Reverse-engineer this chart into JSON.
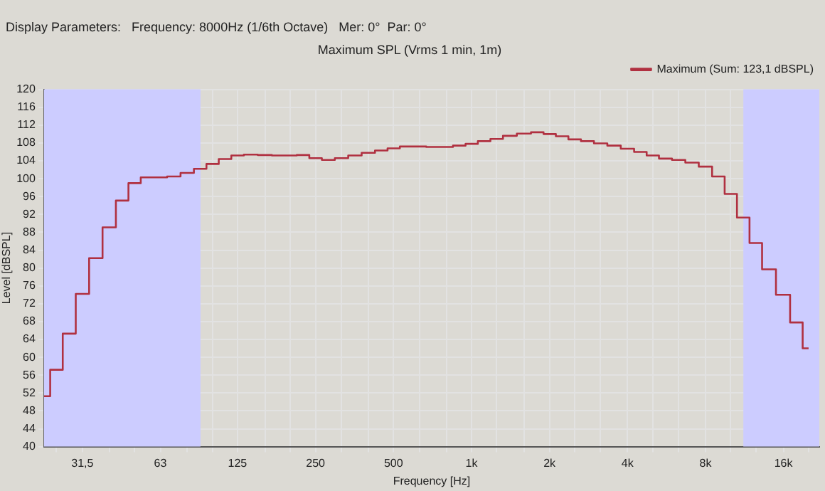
{
  "chart_data": {
    "type": "step",
    "title": "Maximum SPL (Vrms 1 min, 1m)",
    "xlabel": "Frequency [Hz]",
    "ylabel": "Level [dBSPL]",
    "annotations": [
      "Display Parameters:   Frequency: 8000Hz (1/6th Octave)   Mer: 0°  Par: 0°"
    ],
    "x": [
      22.4,
      25,
      28,
      31.5,
      35.5,
      40,
      45,
      50,
      56,
      63,
      71,
      80,
      90,
      100,
      112,
      125,
      140,
      160,
      180,
      200,
      224,
      250,
      280,
      315,
      355,
      400,
      450,
      500,
      560,
      630,
      710,
      800,
      900,
      1000,
      1120,
      1250,
      1400,
      1600,
      1800,
      2000,
      2240,
      2500,
      2800,
      3150,
      3550,
      4000,
      4500,
      5000,
      5600,
      6300,
      7100,
      8000,
      9000,
      10000,
      11200,
      12500,
      14000,
      16000,
      18000,
      20000
    ],
    "series": [
      {
        "name": "Maximum (Sum: 123,1 dBSPL)",
        "color": "#b03040",
        "values": [
          51.3,
          57.2,
          65.3,
          74.2,
          82.2,
          89.1,
          95.1,
          99.0,
          100.3,
          100.3,
          100.5,
          101.3,
          102.2,
          103.3,
          104.4,
          105.2,
          105.4,
          105.3,
          105.2,
          105.2,
          105.3,
          104.6,
          104.2,
          104.6,
          105.2,
          105.8,
          106.3,
          106.8,
          107.2,
          107.2,
          107.1,
          107.1,
          107.4,
          107.8,
          108.4,
          108.9,
          109.6,
          110.1,
          110.4,
          110.0,
          109.5,
          108.8,
          108.4,
          107.9,
          107.4,
          106.7,
          106.0,
          105.2,
          104.5,
          104.2,
          103.6,
          102.7,
          100.5,
          96.6,
          91.3,
          85.6,
          79.7,
          74.0,
          67.8,
          62.0
        ]
      }
    ],
    "log": "x",
    "xlim": [
      22.4,
      22000
    ],
    "ylim": [
      40,
      120
    ],
    "xticks": [
      {
        "value": 25,
        "label": null
      },
      {
        "value": 31.5,
        "label": "31,5"
      },
      {
        "value": 40,
        "label": null
      },
      {
        "value": 50,
        "label": null
      },
      63,
      {
        "value": 80,
        "label": null
      },
      {
        "value": 100,
        "label": null
      },
      125,
      {
        "value": 160,
        "label": null
      },
      {
        "value": 200,
        "label": null
      },
      250,
      {
        "value": 315,
        "label": null
      },
      {
        "value": 400,
        "label": null
      },
      500,
      {
        "value": 630,
        "label": null
      },
      {
        "value": 800,
        "label": null
      },
      {
        "value": 1000,
        "label": "1k"
      },
      {
        "value": 1250,
        "label": null
      },
      {
        "value": 1600,
        "label": null
      },
      {
        "value": 2000,
        "label": "2k"
      },
      {
        "value": 2500,
        "label": null
      },
      {
        "value": 3150,
        "label": null
      },
      {
        "value": 4000,
        "label": "4k"
      },
      {
        "value": 5000,
        "label": null
      },
      {
        "value": 6300,
        "label": null
      },
      {
        "value": 8000,
        "label": "8k"
      },
      {
        "value": 10000,
        "label": null
      },
      {
        "value": 12500,
        "label": null
      },
      {
        "value": 16000,
        "label": "16k"
      },
      {
        "value": 20000,
        "label": null
      }
    ],
    "yticks": [
      40,
      44,
      48,
      52,
      56,
      60,
      64,
      68,
      72,
      76,
      80,
      84,
      88,
      92,
      96,
      100,
      104,
      108,
      112,
      116,
      120
    ],
    "bands": [
      {
        "axis": "x",
        "from": 22.4,
        "to": 90,
        "color": "#ccccff"
      },
      {
        "axis": "x",
        "from": 11200,
        "to": 22000,
        "color": "#ccccff"
      }
    ],
    "grid": true,
    "legend": "top right"
  }
}
